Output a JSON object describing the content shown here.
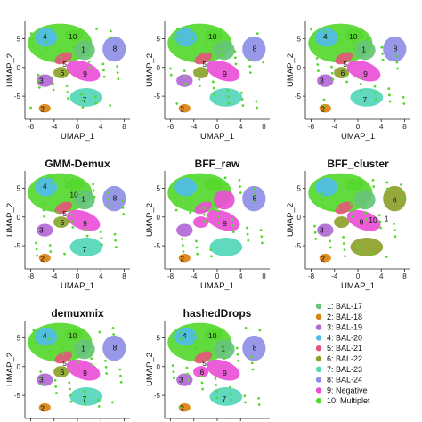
{
  "chart_data": {
    "type": "scatter",
    "xlabel": "UMAP_1",
    "ylabel": "UMAP_2",
    "xticks": [
      -8,
      -4,
      0,
      4,
      8
    ],
    "yticks": [
      -5,
      0,
      5
    ],
    "xlim": [
      -9,
      9
    ],
    "ylim": [
      -9,
      8
    ],
    "legend_position": "bottom-right",
    "legend": [
      {
        "label": "1: BAL-17",
        "color": "#66c47a"
      },
      {
        "label": "2: BAL-18",
        "color": "#d9820f"
      },
      {
        "label": "3: BAL-19",
        "color": "#b268d6"
      },
      {
        "label": "4: BAL-20",
        "color": "#4fbde8"
      },
      {
        "label": "5: BAL-21",
        "color": "#e3587a"
      },
      {
        "label": "6: BAL-22",
        "color": "#8da12a"
      },
      {
        "label": "7: BAL-23",
        "color": "#53d6b8"
      },
      {
        "label": "8: BAL-24",
        "color": "#8f8fe6"
      },
      {
        "label": "9: Negative",
        "color": "#ea4fd6"
      },
      {
        "label": "10: Multiplet",
        "color": "#55d82e"
      }
    ],
    "panels": [
      {
        "title": "",
        "clusters": [
          "1",
          "5",
          "6",
          "9",
          "3",
          "2",
          "7",
          "10"
        ],
        "labels": [
          {
            "text": "4",
            "x": -5.6,
            "y": 5.4
          },
          {
            "text": "10",
            "x": -0.8,
            "y": 5.4
          },
          {
            "text": "1",
            "x": 1.0,
            "y": 3.1
          },
          {
            "text": "8",
            "x": 6.4,
            "y": 3.3
          },
          {
            "text": "5",
            "x": -2.2,
            "y": 0.6
          },
          {
            "text": "6",
            "x": -2.6,
            "y": -1.0
          },
          {
            "text": "9",
            "x": 1.3,
            "y": -1.1
          },
          {
            "text": "3",
            "x": -6.2,
            "y": -2.3
          },
          {
            "text": "7",
            "x": 1.2,
            "y": -5.6
          },
          {
            "text": "2",
            "x": -6.0,
            "y": -7.2
          }
        ]
      },
      {
        "title": "",
        "clusters": [
          "1",
          "5",
          "6",
          "9",
          "3",
          "2",
          "7",
          "10"
        ],
        "labels": [
          {
            "text": "10",
            "x": -0.8,
            "y": 5.4
          },
          {
            "text": "8",
            "x": 6.4,
            "y": 3.3
          },
          {
            "text": "5",
            "x": -2.2,
            "y": 0.6
          },
          {
            "text": "9",
            "x": 1.3,
            "y": -1.1
          },
          {
            "text": "2",
            "x": -6.0,
            "y": -7.2
          }
        ]
      },
      {
        "title": "",
        "clusters": [
          "1",
          "5",
          "6",
          "9",
          "3",
          "2",
          "7",
          "10"
        ],
        "labels": [
          {
            "text": "4",
            "x": -5.6,
            "y": 5.4
          },
          {
            "text": "10",
            "x": -0.8,
            "y": 5.4
          },
          {
            "text": "1",
            "x": 1.0,
            "y": 3.1
          },
          {
            "text": "8",
            "x": 6.4,
            "y": 3.3
          },
          {
            "text": "5",
            "x": -2.2,
            "y": 0.6
          },
          {
            "text": "6",
            "x": -2.6,
            "y": -1.0
          },
          {
            "text": "9",
            "x": 1.3,
            "y": -1.1
          },
          {
            "text": "3",
            "x": -6.2,
            "y": -2.3
          },
          {
            "text": "7",
            "x": 1.2,
            "y": -5.6
          },
          {
            "text": "2",
            "x": -6.0,
            "y": -7.2
          }
        ]
      },
      {
        "title": "GMM-Demux",
        "clusters": [
          "1",
          "5",
          "6",
          "9",
          "3",
          "2",
          "7",
          "10"
        ],
        "labels": [
          {
            "text": "4",
            "x": -5.6,
            "y": 5.4
          },
          {
            "text": "10",
            "x": -0.6,
            "y": 3.9
          },
          {
            "text": "1",
            "x": 1.0,
            "y": 3.1
          },
          {
            "text": "8",
            "x": 6.4,
            "y": 3.3
          },
          {
            "text": "5",
            "x": -2.2,
            "y": 0.6
          },
          {
            "text": "6",
            "x": -2.6,
            "y": -1.0
          },
          {
            "text": "9",
            "x": 1.3,
            "y": -1.1
          },
          {
            "text": "3",
            "x": -6.2,
            "y": -2.3
          },
          {
            "text": "7",
            "x": 1.2,
            "y": -5.6
          },
          {
            "text": "2",
            "x": -6.0,
            "y": -7.2
          }
        ]
      },
      {
        "title": "BFF_raw",
        "clusters": [
          "9",
          "9",
          "9",
          "9",
          "3",
          "2",
          "7",
          "10"
        ],
        "labels": [
          {
            "text": "8",
            "x": 6.4,
            "y": 3.3
          },
          {
            "text": "9",
            "x": 1.3,
            "y": -1.1
          },
          {
            "text": "2",
            "x": -6.0,
            "y": -7.2
          }
        ]
      },
      {
        "title": "BFF_cluster",
        "clusters": [
          "1",
          "5",
          "6",
          "9",
          "3",
          "2",
          "6",
          "10"
        ],
        "labels": [
          {
            "text": "6",
            "x": 6.3,
            "y": 3.0
          },
          {
            "text": "10",
            "x": 2.6,
            "y": -0.5
          },
          {
            "text": "1",
            "x": 4.9,
            "y": -0.3
          },
          {
            "text": "9",
            "x": 0.6,
            "y": -0.9
          },
          {
            "text": "3",
            "x": -6.2,
            "y": -2.3
          },
          {
            "text": "2",
            "x": -6.0,
            "y": -7.2
          }
        ]
      },
      {
        "title": "demuxmix",
        "clusters": [
          "1",
          "5",
          "6",
          "9",
          "3",
          "2",
          "7",
          "10"
        ],
        "labels": [
          {
            "text": "4",
            "x": -5.6,
            "y": 5.4
          },
          {
            "text": "10",
            "x": -0.8,
            "y": 5.4
          },
          {
            "text": "1",
            "x": 1.0,
            "y": 3.1
          },
          {
            "text": "8",
            "x": 6.4,
            "y": 3.3
          },
          {
            "text": "5",
            "x": -2.2,
            "y": 0.6
          },
          {
            "text": "6",
            "x": -2.6,
            "y": -1.0
          },
          {
            "text": "9",
            "x": 1.3,
            "y": -1.1
          },
          {
            "text": "3",
            "x": -6.2,
            "y": -2.3
          },
          {
            "text": "7",
            "x": 1.2,
            "y": -5.6
          },
          {
            "text": "2",
            "x": -6.0,
            "y": -7.2
          }
        ]
      },
      {
        "title": "hashedDrops",
        "clusters": [
          "1",
          "5",
          "9",
          "9",
          "3",
          "2",
          "7",
          "10"
        ],
        "labels": [
          {
            "text": "4",
            "x": -5.6,
            "y": 5.4
          },
          {
            "text": "10",
            "x": -0.8,
            "y": 5.4
          },
          {
            "text": "1",
            "x": 1.0,
            "y": 3.1
          },
          {
            "text": "8",
            "x": 6.4,
            "y": 3.3
          },
          {
            "text": "5",
            "x": -2.2,
            "y": 0.6
          },
          {
            "text": "6",
            "x": -2.6,
            "y": -1.0
          },
          {
            "text": "9",
            "x": 1.3,
            "y": -1.1
          },
          {
            "text": "3",
            "x": -6.2,
            "y": -2.3
          },
          {
            "text": "7",
            "x": 1.2,
            "y": -5.6
          },
          {
            "text": "2",
            "x": -6.0,
            "y": -7.2
          }
        ]
      }
    ]
  }
}
